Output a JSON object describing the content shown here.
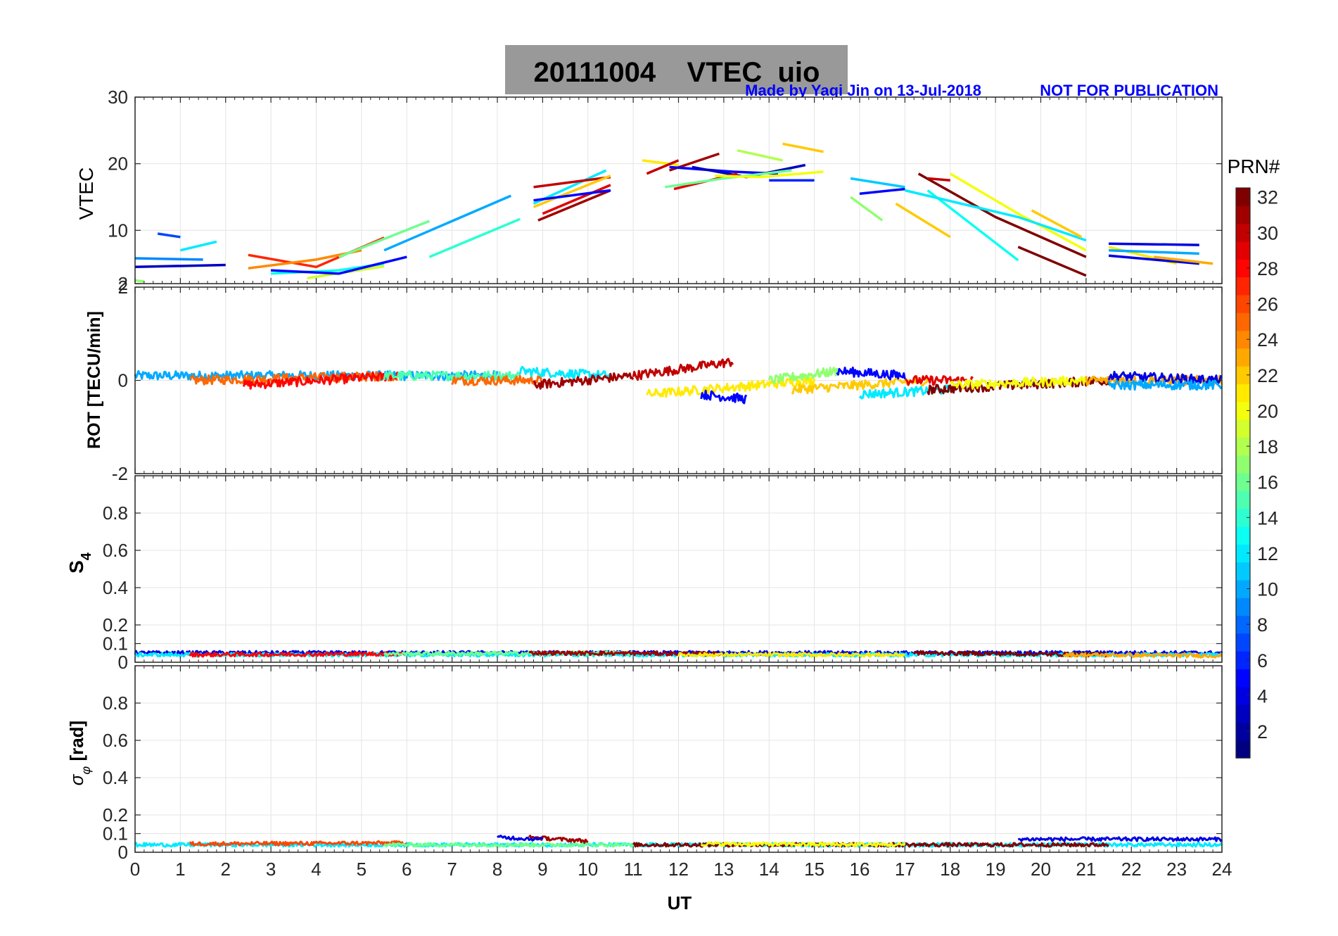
{
  "header": {
    "title": "20111004    VTEC  uio",
    "credit": "Made by Yaqi Jin on 13-Jul-2018",
    "notice": "NOT FOR PUBLICATION"
  },
  "colorbar": {
    "label": "PRN#",
    "ticks": [
      "2",
      "4",
      "6",
      "8",
      "10",
      "12",
      "14",
      "16",
      "18",
      "20",
      "22",
      "24",
      "26",
      "28",
      "30",
      "32"
    ],
    "range": [
      1,
      32
    ],
    "colormap": "jet"
  },
  "chart_data": [
    {
      "type": "line",
      "panel": "vtec",
      "ylabel": "VTEC",
      "xlabel": "",
      "xlim": [
        0,
        24
      ],
      "ylim": [
        2,
        30
      ],
      "yticks": [
        "30",
        "20",
        "10",
        "2"
      ],
      "grid": true,
      "series": [
        {
          "prn": 9,
          "x": [
            0.0,
            1.5
          ],
          "y": [
            5.8,
            5.6
          ]
        },
        {
          "prn": 3,
          "x": [
            0.0,
            2.0
          ],
          "y": [
            4.5,
            4.8
          ]
        },
        {
          "prn": 7,
          "x": [
            0.5,
            1.0
          ],
          "y": [
            9.5,
            9.0
          ]
        },
        {
          "prn": 17,
          "x": [
            0.0,
            0.2
          ],
          "y": [
            2.5,
            2.3
          ]
        },
        {
          "prn": 12,
          "x": [
            1.0,
            1.8
          ],
          "y": [
            7.0,
            8.3
          ]
        },
        {
          "prn": 27,
          "x": [
            2.5,
            4.0,
            5.5
          ],
          "y": [
            6.3,
            4.5,
            8.9
          ]
        },
        {
          "prn": 24,
          "x": [
            2.5,
            4.0,
            5.0
          ],
          "y": [
            4.3,
            5.6,
            7.0
          ]
        },
        {
          "prn": 13,
          "x": [
            3.0,
            4.5,
            5.5
          ],
          "y": [
            3.5,
            4.0,
            5.0
          ]
        },
        {
          "prn": 19,
          "x": [
            3.8,
            5.5
          ],
          "y": [
            2.8,
            4.6
          ]
        },
        {
          "prn": 5,
          "x": [
            3.0,
            4.5,
            6.0
          ],
          "y": [
            4.0,
            3.5,
            6.0
          ]
        },
        {
          "prn": 16,
          "x": [
            4.5,
            6.5
          ],
          "y": [
            6.0,
            11.4
          ]
        },
        {
          "prn": 10,
          "x": [
            5.5,
            8.3
          ],
          "y": [
            7.0,
            15.2
          ]
        },
        {
          "prn": 14,
          "x": [
            6.5,
            8.5
          ],
          "y": [
            6.0,
            11.7
          ]
        },
        {
          "prn": 12,
          "x": [
            8.8,
            10.4
          ],
          "y": [
            14.0,
            19.0
          ]
        },
        {
          "prn": 30,
          "x": [
            8.8,
            10.5
          ],
          "y": [
            16.5,
            18.0
          ]
        },
        {
          "prn": 29,
          "x": [
            9.0,
            10.5
          ],
          "y": [
            12.5,
            16.8
          ]
        },
        {
          "prn": 31,
          "x": [
            8.9,
            10.5
          ],
          "y": [
            11.5,
            16.0
          ]
        },
        {
          "prn": 22,
          "x": [
            8.8,
            10.5
          ],
          "y": [
            13.5,
            18.2
          ]
        },
        {
          "prn": 5,
          "x": [
            8.8,
            10.5
          ],
          "y": [
            14.5,
            16.0
          ]
        },
        {
          "prn": 21,
          "x": [
            11.2,
            12.0
          ],
          "y": [
            20.5,
            19.8
          ]
        },
        {
          "prn": 30,
          "x": [
            11.3,
            12.0
          ],
          "y": [
            18.5,
            20.5
          ]
        },
        {
          "prn": 31,
          "x": [
            11.8,
            12.9
          ],
          "y": [
            19.0,
            21.5
          ]
        },
        {
          "prn": 5,
          "x": [
            11.8,
            13.2,
            14.2
          ],
          "y": [
            19.5,
            18.8,
            18.5
          ]
        },
        {
          "prn": 3,
          "x": [
            12.3,
            13.5,
            14.8
          ],
          "y": [
            19.5,
            18.0,
            19.8
          ]
        },
        {
          "prn": 29,
          "x": [
            11.9,
            13.3
          ],
          "y": [
            16.2,
            18.5
          ]
        },
        {
          "prn": 16,
          "x": [
            11.7,
            13.0,
            14.5
          ],
          "y": [
            16.5,
            17.8,
            19.0
          ]
        },
        {
          "prn": 20,
          "x": [
            12.8,
            13.8,
            15.2
          ],
          "y": [
            18.2,
            18.0,
            18.8
          ]
        },
        {
          "prn": 18,
          "x": [
            13.3,
            14.3
          ],
          "y": [
            22.0,
            20.5
          ]
        },
        {
          "prn": 22,
          "x": [
            14.3,
            15.2
          ],
          "y": [
            23.0,
            21.8
          ]
        },
        {
          "prn": 6,
          "x": [
            14.0,
            15.0
          ],
          "y": [
            17.5,
            17.5
          ]
        },
        {
          "prn": 17,
          "x": [
            15.8,
            16.5
          ],
          "y": [
            15.0,
            11.5
          ]
        },
        {
          "prn": 11,
          "x": [
            15.8,
            17.0
          ],
          "y": [
            17.8,
            16.5
          ]
        },
        {
          "prn": 22,
          "x": [
            16.8,
            18.0
          ],
          "y": [
            14.0,
            9.0
          ]
        },
        {
          "prn": 5,
          "x": [
            16.0,
            17.0
          ],
          "y": [
            15.5,
            16.2
          ]
        },
        {
          "prn": 32,
          "x": [
            17.3,
            19.0,
            21.0
          ],
          "y": [
            18.5,
            12.0,
            6.0
          ]
        },
        {
          "prn": 30,
          "x": [
            17.5,
            18.0
          ],
          "y": [
            17.8,
            17.5
          ]
        },
        {
          "prn": 20,
          "x": [
            18.0,
            19.5,
            21.0
          ],
          "y": [
            18.5,
            12.5,
            7.0
          ]
        },
        {
          "prn": 13,
          "x": [
            17.5,
            19.5
          ],
          "y": [
            16.0,
            5.5
          ]
        },
        {
          "prn": 12,
          "x": [
            17.0,
            19.5,
            21.0
          ],
          "y": [
            16.0,
            12.0,
            8.5
          ]
        },
        {
          "prn": 22,
          "x": [
            19.8,
            20.9
          ],
          "y": [
            13.0,
            9.0
          ]
        },
        {
          "prn": 32,
          "x": [
            19.5,
            21.0
          ],
          "y": [
            7.5,
            3.2
          ]
        },
        {
          "prn": 4,
          "x": [
            21.5,
            23.5
          ],
          "y": [
            8.0,
            7.8
          ]
        },
        {
          "prn": 21,
          "x": [
            21.5,
            23.0
          ],
          "y": [
            7.5,
            5.0
          ]
        },
        {
          "prn": 10,
          "x": [
            21.5,
            23.5
          ],
          "y": [
            7.0,
            6.5
          ]
        },
        {
          "prn": 4,
          "x": [
            21.5,
            23.5
          ],
          "y": [
            6.2,
            5.0
          ]
        },
        {
          "prn": 23,
          "x": [
            22.5,
            23.8
          ],
          "y": [
            6.0,
            5.0
          ]
        }
      ]
    },
    {
      "type": "line",
      "panel": "rot",
      "ylabel": "ROT [TECU/min]",
      "xlim": [
        0,
        24
      ],
      "ylim": [
        -2,
        2
      ],
      "yticks": [
        "2",
        "0",
        "-2"
      ],
      "grid": true,
      "noise_amplitude": 0.1,
      "series": [
        {
          "prn": 10,
          "x": [
            0.0,
            8.0
          ],
          "y": [
            0.1,
            0.1
          ]
        },
        {
          "prn": 25,
          "x": [
            1.2,
            5.8
          ],
          "y": [
            0.0,
            0.1
          ]
        },
        {
          "prn": 28,
          "x": [
            2.4,
            5.8
          ],
          "y": [
            -0.1,
            0.1
          ]
        },
        {
          "prn": 15,
          "x": [
            5.5,
            8.5
          ],
          "y": [
            0.1,
            0.1
          ]
        },
        {
          "prn": 25,
          "x": [
            7.0,
            9.0
          ],
          "y": [
            0.0,
            0.0
          ]
        },
        {
          "prn": 12,
          "x": [
            8.5,
            10.5
          ],
          "y": [
            0.2,
            0.1
          ]
        },
        {
          "prn": 31,
          "x": [
            8.8,
            11.0
          ],
          "y": [
            -0.1,
            0.1
          ]
        },
        {
          "prn": 30,
          "x": [
            11.0,
            13.2
          ],
          "y": [
            0.1,
            0.4
          ]
        },
        {
          "prn": 21,
          "x": [
            11.3,
            15.0
          ],
          "y": [
            -0.3,
            0.0
          ]
        },
        {
          "prn": 5,
          "x": [
            12.5,
            13.5
          ],
          "y": [
            -0.3,
            -0.4
          ]
        },
        {
          "prn": 17,
          "x": [
            14.0,
            15.5
          ],
          "y": [
            0.0,
            0.2
          ]
        },
        {
          "prn": 22,
          "x": [
            14.5,
            17.5
          ],
          "y": [
            -0.2,
            0.0
          ]
        },
        {
          "prn": 5,
          "x": [
            15.5,
            17.0
          ],
          "y": [
            0.2,
            0.1
          ]
        },
        {
          "prn": 12,
          "x": [
            16.0,
            18.0
          ],
          "y": [
            -0.3,
            -0.2
          ]
        },
        {
          "prn": 32,
          "x": [
            17.5,
            21.5
          ],
          "y": [
            -0.2,
            0.0
          ]
        },
        {
          "prn": 29,
          "x": [
            17.0,
            18.5
          ],
          "y": [
            0.0,
            0.0
          ]
        },
        {
          "prn": 20,
          "x": [
            18.0,
            21.0
          ],
          "y": [
            -0.1,
            0.0
          ]
        },
        {
          "prn": 23,
          "x": [
            21.0,
            24.0
          ],
          "y": [
            0.0,
            0.0
          ]
        },
        {
          "prn": 4,
          "x": [
            21.5,
            24.0
          ],
          "y": [
            0.1,
            0.0
          ]
        },
        {
          "prn": 10,
          "x": [
            21.5,
            24.0
          ],
          "y": [
            -0.1,
            -0.1
          ]
        }
      ]
    },
    {
      "type": "line",
      "panel": "s4",
      "ylabel": "S4",
      "xlim": [
        0,
        24
      ],
      "ylim": [
        0,
        1
      ],
      "yticks": [
        "0.8",
        "0.6",
        "0.4",
        "0.2",
        "0.1",
        "0"
      ],
      "grid": true,
      "noise_amplitude": 0.01,
      "series": [
        {
          "prn": 4,
          "x": [
            0.0,
            24.0
          ],
          "y": [
            0.05,
            0.05
          ]
        },
        {
          "prn": 12,
          "x": [
            0.0,
            24.0
          ],
          "y": [
            0.04,
            0.04
          ]
        },
        {
          "prn": 28,
          "x": [
            1.2,
            6.0
          ],
          "y": [
            0.04,
            0.045
          ]
        },
        {
          "prn": 16,
          "x": [
            5.5,
            11.0
          ],
          "y": [
            0.045,
            0.05
          ]
        },
        {
          "prn": 31,
          "x": [
            8.7,
            13.0
          ],
          "y": [
            0.05,
            0.045
          ]
        },
        {
          "prn": 21,
          "x": [
            12.0,
            17.0
          ],
          "y": [
            0.04,
            0.04
          ]
        },
        {
          "prn": 32,
          "x": [
            17.2,
            21.5
          ],
          "y": [
            0.05,
            0.04
          ]
        },
        {
          "prn": 23,
          "x": [
            20.5,
            24.0
          ],
          "y": [
            0.04,
            0.035
          ]
        }
      ]
    },
    {
      "type": "line",
      "panel": "sigma_phi",
      "ylabel": "σφ [rad]",
      "xlabel": "UT",
      "xlim": [
        0,
        24
      ],
      "ylim": [
        0,
        1
      ],
      "yticks": [
        "0.8",
        "0.6",
        "0.4",
        "0.2",
        "0.1",
        "0"
      ],
      "xticks": [
        "0",
        "1",
        "2",
        "3",
        "4",
        "5",
        "6",
        "7",
        "8",
        "9",
        "10",
        "11",
        "12",
        "13",
        "14",
        "15",
        "16",
        "17",
        "18",
        "19",
        "20",
        "21",
        "22",
        "23",
        "24"
      ],
      "grid": true,
      "noise_amplitude": 0.01,
      "series": [
        {
          "prn": 12,
          "x": [
            0.0,
            24.0
          ],
          "y": [
            0.04,
            0.04
          ]
        },
        {
          "prn": 26,
          "x": [
            1.2,
            6.0
          ],
          "y": [
            0.045,
            0.05
          ]
        },
        {
          "prn": 16,
          "x": [
            5.5,
            11.0
          ],
          "y": [
            0.04,
            0.04
          ]
        },
        {
          "prn": 31,
          "x": [
            8.7,
            10.0
          ],
          "y": [
            0.08,
            0.06
          ]
        },
        {
          "prn": 4,
          "x": [
            8.0,
            9.0
          ],
          "y": [
            0.08,
            0.07
          ]
        },
        {
          "prn": 32,
          "x": [
            11.0,
            21.5
          ],
          "y": [
            0.04,
            0.04
          ]
        },
        {
          "prn": 20,
          "x": [
            12.5,
            17.0
          ],
          "y": [
            0.045,
            0.04
          ]
        },
        {
          "prn": 4,
          "x": [
            19.5,
            24.0
          ],
          "y": [
            0.07,
            0.07
          ]
        }
      ]
    }
  ]
}
